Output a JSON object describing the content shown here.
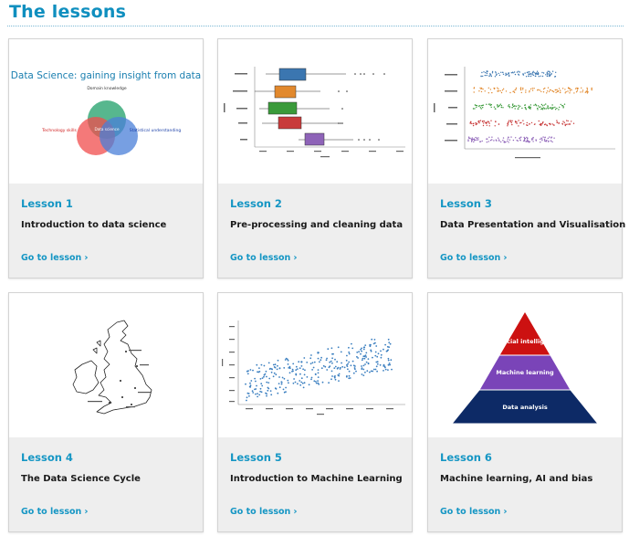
{
  "section": {
    "title": "The lessons"
  },
  "link_label": "Go to lesson",
  "lessons": [
    {
      "number": "Lesson 1",
      "title": "Introduction to data science",
      "thumb": {
        "heading": "Data Science: gaining insight from data",
        "venn": {
          "top": "Domain knowledge",
          "left": "Technology skills",
          "right": "Statistical understanding",
          "center": "Data science"
        }
      }
    },
    {
      "number": "Lesson 2",
      "title": "Pre-processing and cleaning data"
    },
    {
      "number": "Lesson 3",
      "title": "Data Presentation and Visualisation"
    },
    {
      "number": "Lesson 4",
      "title": "The Data Science Cycle"
    },
    {
      "number": "Lesson 5",
      "title": "Introduction to Machine Learning"
    },
    {
      "number": "Lesson 6",
      "title": "Machine learning, AI and bias",
      "thumb": {
        "pyramid": [
          "Artificial intelligence",
          "Machine learning",
          "Data analysis"
        ],
        "colors": [
          "#cc1111",
          "#7a44b8",
          "#0d2a66"
        ]
      }
    }
  ],
  "colors": {
    "accent": "#1596c4",
    "card_bg": "#eeeeee",
    "title_color": "#0f8fbf"
  }
}
